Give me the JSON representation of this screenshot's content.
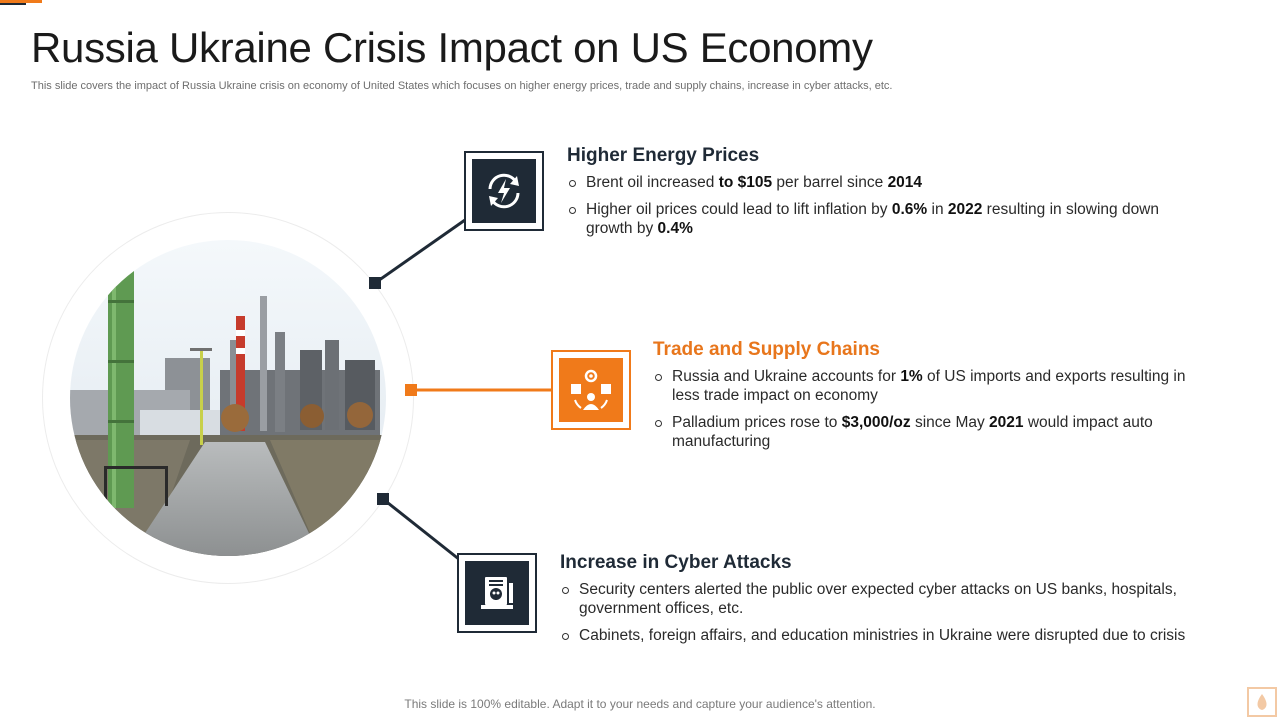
{
  "slide": {
    "title": "Russia Ukraine Crisis Impact on US Economy",
    "subtitle": "This slide covers the impact of Russia Ukraine crisis on economy of United States which focuses on higher energy prices, trade and supply chains, increase in cyber attacks, etc.",
    "footer": "This slide is 100% editable. Adapt it to your needs and capture your audience's attention."
  },
  "colors": {
    "accent": "#f07a1a",
    "dark": "#1f2a36"
  },
  "sections": [
    {
      "heading": "Higher Energy Prices",
      "icon": "energy-refresh-icon",
      "bullets": [
        [
          {
            "t": "Brent oil increased "
          },
          {
            "t": "to $105",
            "b": true
          },
          {
            "t": " per barrel since "
          },
          {
            "t": "2014",
            "b": true
          }
        ],
        [
          {
            "t": "Higher oil prices could lead to lift inflation by "
          },
          {
            "t": "0.6%",
            "b": true
          },
          {
            "t": " in "
          },
          {
            "t": "2022",
            "b": true
          },
          {
            "t": " resulting in slowing down growth by "
          },
          {
            "t": "0.4%",
            "b": true
          }
        ]
      ]
    },
    {
      "heading": "Trade and Supply Chains",
      "icon": "supply-chain-icon",
      "bullets": [
        [
          {
            "t": "Russia and Ukraine accounts for "
          },
          {
            "t": "1%",
            "b": true
          },
          {
            "t": " of US imports and exports resulting in less trade impact on economy"
          }
        ],
        [
          {
            "t": "Palladium prices rose to "
          },
          {
            "t": "$3,000/oz",
            "b": true
          },
          {
            "t": " since May "
          },
          {
            "t": "2021",
            "b": true
          },
          {
            "t": " would impact auto manufacturing"
          }
        ]
      ]
    },
    {
      "heading": "Increase in Cyber Attacks",
      "icon": "cyber-attack-icon",
      "bullets": [
        [
          {
            "t": "Security centers alerted the public over expected cyber attacks on US banks, hospitals, government offices, etc."
          }
        ],
        [
          {
            "t": "Cabinets, foreign affairs, and education ministries in Ukraine were disrupted due to crisis"
          }
        ]
      ]
    }
  ]
}
